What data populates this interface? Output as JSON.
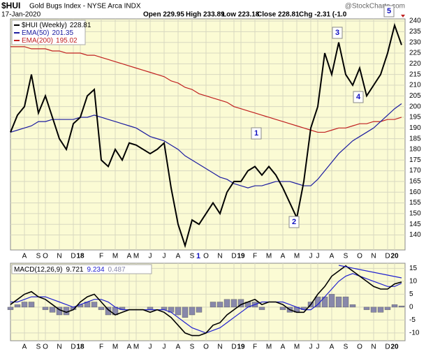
{
  "header": {
    "symbol": "$HUI",
    "name": "Gold Bugs Index - NYSE Arca INDX",
    "source": "@StockCharts.com",
    "date": "17-Jan-2020",
    "quote": [
      "Open 229.95",
      "High 233.89",
      "Low 223.18",
      "Close 228.81",
      "Chg -2.31 (-1.0"
    ]
  },
  "chart_data": [
    {
      "type": "line",
      "categories": [
        null,
        null,
        "A",
        null,
        "S",
        "O",
        null,
        "N",
        null,
        "D",
        "18",
        null,
        null,
        "F",
        null,
        "M",
        null,
        "A",
        "M",
        null,
        "J",
        null,
        "J",
        null,
        "A",
        null,
        "S",
        null,
        "O",
        null,
        "N",
        null,
        "D",
        "19",
        null,
        "F",
        null,
        "M",
        null,
        "A",
        null,
        "M",
        null,
        "J",
        "J",
        null,
        "A",
        null,
        "S",
        null,
        "O",
        null,
        "N",
        null,
        "D",
        "20",
        null
      ],
      "series": [
        {
          "name": "$HUI (Weekly)",
          "color": "#000000",
          "values": [
            188,
            196,
            200,
            215,
            197,
            205,
            195,
            185,
            180,
            192,
            195,
            205,
            208,
            175,
            172,
            180,
            175,
            183,
            182,
            180,
            178,
            180,
            183,
            162,
            145,
            135,
            147,
            145,
            150,
            155,
            150,
            160,
            165,
            165,
            170,
            172,
            168,
            172,
            168,
            162,
            155,
            148,
            165,
            190,
            200,
            225,
            215,
            230,
            215,
            210,
            218,
            205,
            210,
            215,
            225,
            238,
            228.81
          ]
        },
        {
          "name": "EMA(50)",
          "color": "#1c1ca0",
          "values": [
            188,
            189,
            190,
            191,
            193,
            193,
            194,
            194,
            194,
            194,
            195,
            195,
            196,
            195,
            194,
            193,
            192,
            191,
            190,
            188,
            186,
            185,
            184,
            182,
            180,
            177,
            175,
            173,
            171,
            169,
            167,
            166,
            164,
            163,
            162,
            163,
            163,
            164,
            165,
            165,
            165,
            164,
            163,
            163,
            166,
            170,
            174,
            178,
            181,
            184,
            186,
            188,
            190,
            193,
            196,
            199,
            201.35
          ]
        },
        {
          "name": "EMA(200)",
          "color": "#c02020",
          "values": [
            228,
            228,
            228,
            227,
            227,
            227,
            226,
            226,
            225,
            225,
            225,
            224,
            224,
            223,
            222,
            221,
            220,
            219,
            218,
            217,
            216,
            215,
            214,
            212,
            211,
            209,
            208,
            206,
            205,
            204,
            203,
            202,
            200,
            199,
            198,
            197,
            196,
            195,
            194,
            193,
            192,
            191,
            190,
            189,
            188,
            188,
            189,
            190,
            190,
            191,
            192,
            192,
            193,
            193,
            194,
            194,
            195.02
          ]
        }
      ],
      "ylim": [
        133,
        241
      ],
      "yticks": [
        140,
        145,
        150,
        155,
        160,
        165,
        170,
        175,
        180,
        185,
        190,
        195,
        200,
        205,
        210,
        215,
        220,
        225,
        230,
        235,
        240
      ],
      "grid": true,
      "annotations": [
        "1",
        "2",
        "3",
        "4",
        "5",
        "1"
      ]
    },
    {
      "type": "macd",
      "title": "MACD(12,26,9)",
      "categories": [
        null,
        null,
        "A",
        null,
        "S",
        "O",
        null,
        "N",
        null,
        "D",
        "18",
        null,
        null,
        "F",
        null,
        "M",
        null,
        "A",
        "M",
        null,
        "J",
        null,
        "J",
        null,
        "A",
        null,
        "S",
        null,
        "O",
        null,
        "N",
        null,
        "D",
        "19",
        null,
        "F",
        null,
        "M",
        null,
        "A",
        null,
        "M",
        null,
        "J",
        "J",
        null,
        "A",
        null,
        "S",
        null,
        "O",
        null,
        "N",
        null,
        "D",
        "20",
        null
      ],
      "series": [
        {
          "color": "#000000",
          "values": [
            1,
            3,
            5,
            6,
            4,
            3,
            1,
            -1,
            -2,
            -1,
            2,
            4,
            5,
            2,
            -1,
            -3,
            -2,
            -1,
            -1,
            -1,
            -2,
            -1,
            -2,
            -4,
            -7,
            -10,
            -11,
            -11,
            -10,
            -7,
            -6,
            -3,
            -1,
            1,
            2,
            3,
            1,
            2,
            2,
            1,
            -1,
            -2,
            -2,
            1,
            5,
            8,
            12,
            14,
            16,
            14,
            12,
            10,
            8,
            7,
            7,
            9,
            9.721
          ]
        },
        {
          "color": "#2020d0",
          "values": [
            2,
            2,
            3,
            4,
            4,
            4,
            3,
            2,
            1,
            0,
            1,
            2,
            3,
            3,
            2,
            0,
            -1,
            -1,
            -1,
            -1,
            -1,
            -1,
            -1,
            -2,
            -4,
            -6,
            -8,
            -9,
            -10,
            -9,
            -8,
            -6,
            -4,
            -2,
            0,
            1,
            2,
            2,
            2,
            2,
            1,
            0,
            -1,
            -1,
            1,
            4,
            7,
            10,
            12,
            13,
            12,
            11,
            10,
            9,
            8,
            8,
            9.234
          ]
        },
        {
          "color": "#8888aa",
          "values": [
            -1,
            1,
            2,
            2,
            0,
            -1,
            -2,
            -3,
            -3,
            -1,
            1,
            2,
            2,
            -1,
            -3,
            -3,
            -1,
            0,
            0,
            0,
            -1,
            0,
            -1,
            -2,
            -3,
            -4,
            -3,
            -2,
            0,
            2,
            2,
            3,
            3,
            3,
            2,
            2,
            -1,
            0,
            0,
            -1,
            -2,
            -2,
            -1,
            2,
            4,
            4,
            5,
            4,
            4,
            1,
            0,
            -1,
            -2,
            -2,
            -1,
            1,
            0.487
          ]
        }
      ],
      "ylim": [
        -13,
        17
      ],
      "yticks": [
        -10,
        -5,
        0,
        5,
        10,
        15
      ],
      "grid": true
    }
  ]
}
